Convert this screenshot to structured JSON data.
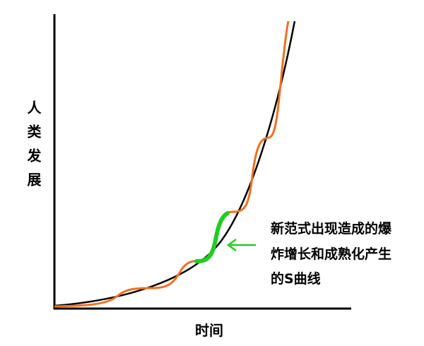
{
  "axes": {
    "y_label": "人类发展",
    "x_label": "时间"
  },
  "annotation": {
    "lines": [
      "新范式出现造成的爆",
      "炸增长和成熟化产生",
      "的S曲线"
    ]
  }
}
